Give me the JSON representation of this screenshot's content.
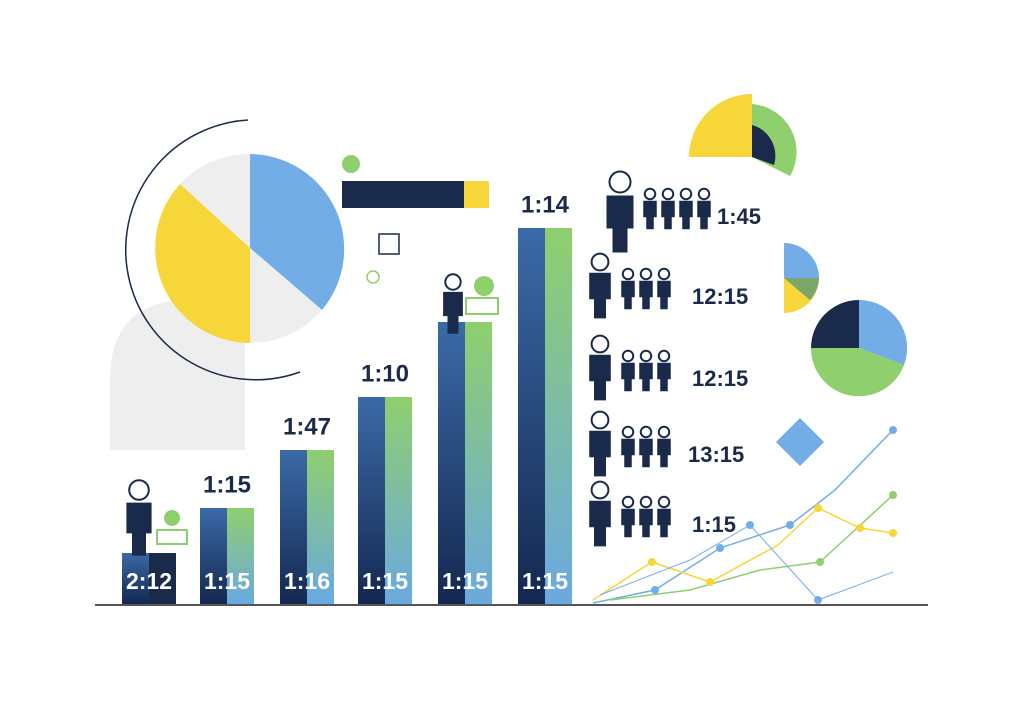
{
  "bars": [
    {
      "bottom_label": "2:12"
    },
    {
      "top_label": "1:15",
      "bottom_label": "1:15"
    },
    {
      "top_label": "1:47",
      "bottom_label": "1:16"
    },
    {
      "top_label": "1:10",
      "bottom_label": "1:15"
    },
    {
      "bottom_label": "1:15"
    },
    {
      "top_label": "1:14",
      "bottom_label": "1:15"
    }
  ],
  "ratios": [
    "1:45",
    "12:15",
    "12:15",
    "13:15",
    "1:15"
  ]
}
